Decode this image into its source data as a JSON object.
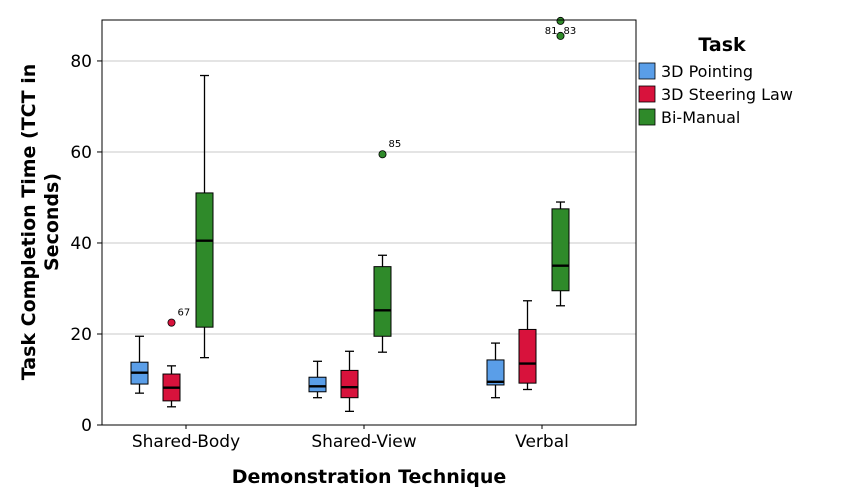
{
  "chart_data": {
    "type": "boxplot",
    "xlabel": "Demonstration Technique",
    "ylabel_line1": "Task Completion Time (TCT in",
    "ylabel_line2": "Seconds)",
    "ylim": [
      0,
      89
    ],
    "yticks": [
      0,
      20,
      40,
      60,
      80
    ],
    "grid": true,
    "legend_title": "Task",
    "legend_position": "right",
    "categories": [
      "Shared-Body",
      "Shared-View",
      "Verbal"
    ],
    "series": [
      {
        "name": "3D Pointing",
        "color": "#5a9ee8",
        "boxes": [
          {
            "min": 7.0,
            "q1": 9.0,
            "median": 11.5,
            "q3": 13.8,
            "max": 19.5,
            "outliers": []
          },
          {
            "min": 6.0,
            "q1": 7.3,
            "median": 8.5,
            "q3": 10.5,
            "max": 14.0,
            "outliers": []
          },
          {
            "min": 6.0,
            "q1": 8.8,
            "median": 9.5,
            "q3": 14.3,
            "max": 18.0,
            "outliers": []
          }
        ]
      },
      {
        "name": "3D Steering Law",
        "color": "#d8123c",
        "boxes": [
          {
            "min": 4.0,
            "q1": 5.3,
            "median": 8.2,
            "q3": 11.2,
            "max": 13.0,
            "outliers": [
              {
                "value": 22.5,
                "label": "67"
              }
            ]
          },
          {
            "min": 3.0,
            "q1": 6.0,
            "median": 8.3,
            "q3": 12.0,
            "max": 16.2,
            "outliers": []
          },
          {
            "min": 7.8,
            "q1": 9.2,
            "median": 13.5,
            "q3": 21.0,
            "max": 27.3,
            "outliers": []
          }
        ]
      },
      {
        "name": "Bi-Manual",
        "color": "#2f8a2a",
        "boxes": [
          {
            "min": 14.8,
            "q1": 21.5,
            "median": 40.5,
            "q3": 51.0,
            "max": 76.8,
            "outliers": []
          },
          {
            "min": 16.0,
            "q1": 19.5,
            "median": 25.2,
            "q3": 34.8,
            "max": 37.3,
            "outliers": [
              {
                "value": 59.5,
                "label": "85"
              }
            ]
          },
          {
            "min": 26.2,
            "q1": 29.5,
            "median": 35.0,
            "q3": 47.5,
            "max": 49.0,
            "outliers": [
              {
                "value": 88.8,
                "label": "81"
              },
              {
                "value": 85.5,
                "label": "83"
              }
            ]
          }
        ]
      }
    ]
  }
}
